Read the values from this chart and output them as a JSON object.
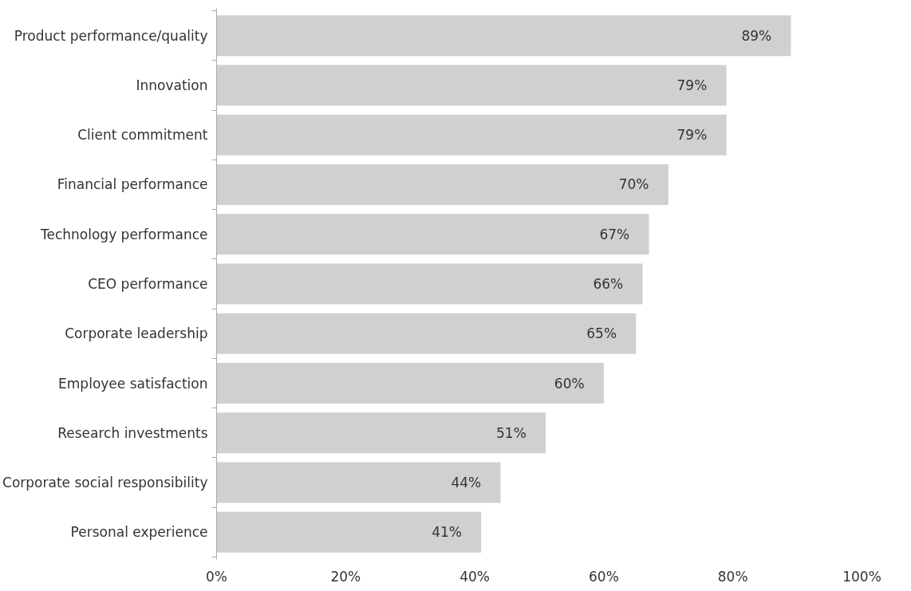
{
  "chart_data": {
    "type": "bar",
    "orientation": "horizontal",
    "categories": [
      "Product performance/quality",
      "Innovation",
      "Client commitment",
      "Financial performance",
      "Technology performance",
      "CEO performance",
      "Corporate leadership",
      "Employee satisfaction",
      "Research investments",
      "Corporate social responsibility",
      "Personal experience"
    ],
    "values": [
      89,
      79,
      79,
      70,
      67,
      66,
      65,
      60,
      51,
      44,
      41
    ],
    "value_labels": [
      "89%",
      "79%",
      "79%",
      "70%",
      "67%",
      "66%",
      "65%",
      "60%",
      "51%",
      "44%",
      "41%"
    ],
    "color": "#d0d0d0",
    "xlim": [
      0,
      100
    ],
    "xticks": [
      {
        "value": 0,
        "label": "0%"
      },
      {
        "value": 20,
        "label": "20%"
      },
      {
        "value": 40,
        "label": "40%"
      },
      {
        "value": 60,
        "label": "60%"
      },
      {
        "value": 80,
        "label": "80%"
      },
      {
        "value": 100,
        "label": "100%"
      }
    ],
    "grid": false
  }
}
